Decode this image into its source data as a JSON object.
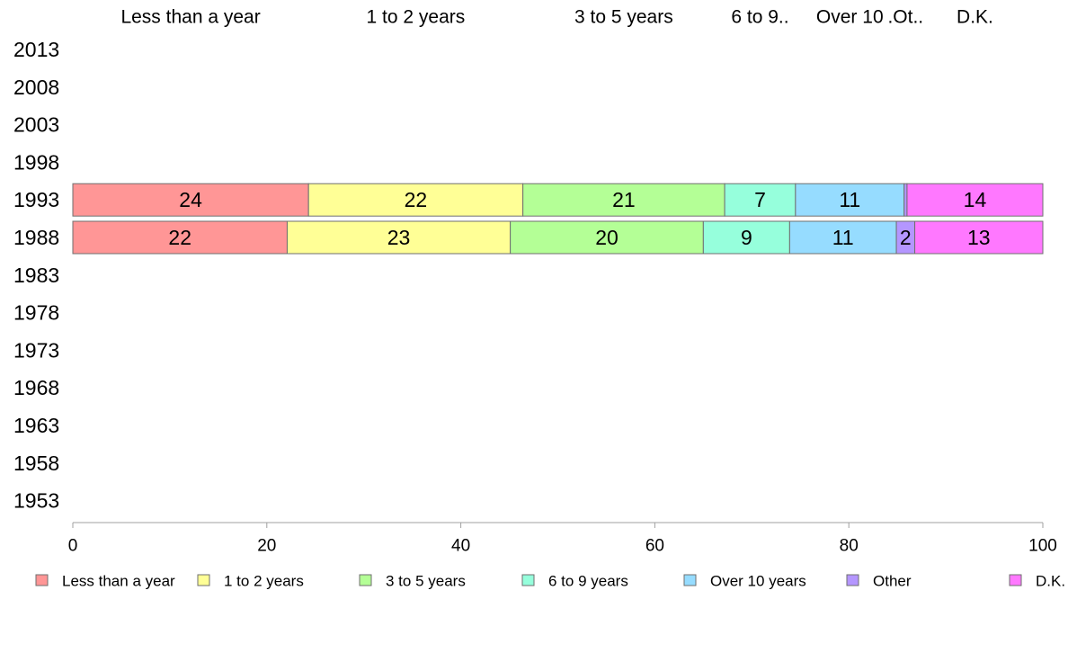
{
  "chart_data": {
    "type": "bar",
    "orientation": "horizontal",
    "stacked": true,
    "title": "",
    "xlabel": "",
    "ylabel": "",
    "xlim": [
      0,
      100
    ],
    "x_ticks": [
      0,
      20,
      40,
      60,
      80,
      100
    ],
    "x_tick_labels": [
      "0",
      "20",
      "40",
      "60",
      "80",
      "100"
    ],
    "grid": false,
    "legend_position": "bottom",
    "categories": [
      "2013",
      "2008",
      "2003",
      "1998",
      "1993",
      "1988",
      "1983",
      "1978",
      "1973",
      "1968",
      "1963",
      "1958",
      "1953"
    ],
    "column_headers": [
      "Less than a year",
      "1 to 2 years",
      "3 to 5 years",
      "6 to 9..",
      "Over 10",
      ".Ot..",
      "D.K."
    ],
    "series": [
      {
        "name": "Less than a year",
        "color": "#ff9696",
        "values": [
          null,
          null,
          null,
          null,
          24.3,
          22.1,
          null,
          null,
          null,
          null,
          null,
          null,
          null
        ],
        "labels": [
          "",
          "",
          "",
          "",
          "24",
          "22",
          "",
          "",
          "",
          "",
          "",
          "",
          ""
        ]
      },
      {
        "name": "1 to 2 years",
        "color": "#ffff96",
        "values": [
          null,
          null,
          null,
          null,
          22.1,
          23.0,
          null,
          null,
          null,
          null,
          null,
          null,
          null
        ],
        "labels": [
          "",
          "",
          "",
          "",
          "22",
          "23",
          "",
          "",
          "",
          "",
          "",
          "",
          ""
        ]
      },
      {
        "name": "3 to 5 years",
        "color": "#b4ff96",
        "values": [
          null,
          null,
          null,
          null,
          20.8,
          19.9,
          null,
          null,
          null,
          null,
          null,
          null,
          null
        ],
        "labels": [
          "",
          "",
          "",
          "",
          "21",
          "20",
          "",
          "",
          "",
          "",
          "",
          "",
          ""
        ]
      },
      {
        "name": "6 to 9 years",
        "color": "#96ffdc",
        "values": [
          null,
          null,
          null,
          null,
          7.3,
          8.9,
          null,
          null,
          null,
          null,
          null,
          null,
          null
        ],
        "labels": [
          "",
          "",
          "",
          "",
          "7",
          "9",
          "",
          "",
          "",
          "",
          "",
          "",
          ""
        ]
      },
      {
        "name": "Over 10 years",
        "color": "#96dcff",
        "values": [
          null,
          null,
          null,
          null,
          11.2,
          11.0,
          null,
          null,
          null,
          null,
          null,
          null,
          null
        ],
        "labels": [
          "",
          "",
          "",
          "",
          "11",
          "11",
          "",
          "",
          "",
          "",
          "",
          "",
          ""
        ]
      },
      {
        "name": "Other",
        "color": "#b496ff",
        "values": [
          null,
          null,
          null,
          null,
          0.3,
          1.9,
          null,
          null,
          null,
          null,
          null,
          null,
          null
        ],
        "labels": [
          "",
          "",
          "",
          "",
          "",
          "2",
          "",
          "",
          "",
          "",
          "",
          "",
          ""
        ]
      },
      {
        "name": "D.K.",
        "color": "#ff78ff",
        "values": [
          null,
          null,
          null,
          null,
          14.0,
          13.2,
          null,
          null,
          null,
          null,
          null,
          null,
          null
        ],
        "labels": [
          "",
          "",
          "",
          "",
          "14",
          "13",
          "",
          "",
          "",
          "",
          "",
          "",
          ""
        ]
      }
    ]
  }
}
